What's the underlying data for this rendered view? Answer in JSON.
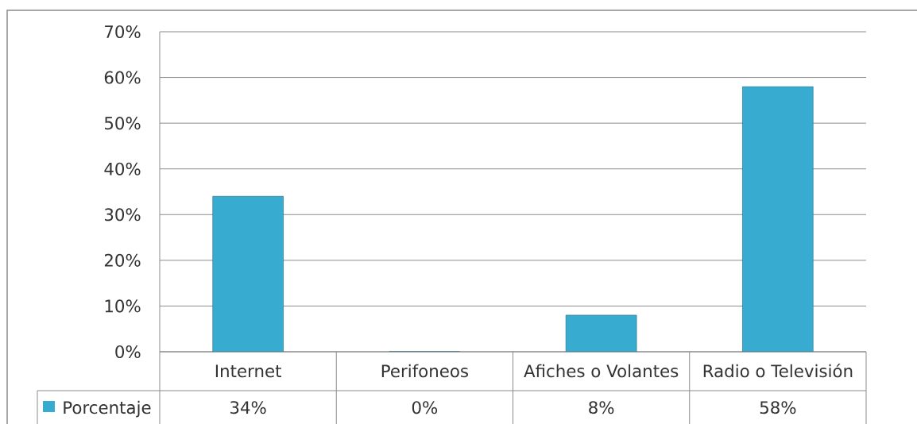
{
  "chart_data": {
    "type": "bar",
    "categories": [
      "Internet",
      "Perifoneos",
      "Afiches o Volantes",
      "Radio o Televisión"
    ],
    "series": [
      {
        "name": "Porcentaje",
        "color": "#38acd0",
        "values": [
          34,
          0,
          8,
          58
        ],
        "value_labels": [
          "34%",
          "0%",
          "8%",
          "58%"
        ]
      }
    ],
    "ylim": [
      0,
      70
    ],
    "yticks": [
      {
        "value": 0,
        "label": "0%"
      },
      {
        "value": 10,
        "label": "10%"
      },
      {
        "value": 20,
        "label": "20%"
      },
      {
        "value": 30,
        "label": "30%"
      },
      {
        "value": 40,
        "label": "40%"
      },
      {
        "value": 50,
        "label": "50%"
      },
      {
        "value": 60,
        "label": "60%"
      },
      {
        "value": 70,
        "label": "70%"
      }
    ],
    "grid": "y",
    "legend": "bottom left"
  }
}
